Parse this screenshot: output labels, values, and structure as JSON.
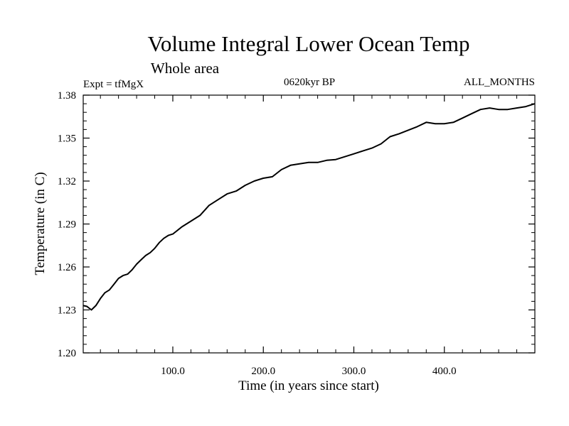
{
  "chart_data": {
    "type": "line",
    "title": "Volume Integral Lower Ocean Temp",
    "subtitle": "Whole area",
    "expt_label": "Expt = tfMgX",
    "period_label": "0620kyr BP",
    "months_label": "ALL_MONTHS",
    "xlabel": "Time (in years since start)",
    "ylabel": "Temperature (in C)",
    "xlim": [
      1,
      500
    ],
    "ylim": [
      1.2,
      1.38
    ],
    "x_ticks": [
      "100.0",
      "200.0",
      "300.0",
      "400.0"
    ],
    "x_tick_values": [
      100,
      200,
      300,
      400
    ],
    "y_ticks": [
      "1.20",
      "1.23",
      "1.26",
      "1.29",
      "1.32",
      "1.35",
      "1.38"
    ],
    "y_tick_values": [
      1.2,
      1.23,
      1.26,
      1.29,
      1.32,
      1.35,
      1.38
    ],
    "grid": false,
    "line_color": "#000000",
    "series": [
      {
        "x": [
          1,
          5,
          10,
          15,
          20,
          25,
          30,
          35,
          40,
          45,
          50,
          55,
          60,
          65,
          70,
          75,
          80,
          85,
          90,
          95,
          100,
          110,
          120,
          130,
          140,
          150,
          160,
          170,
          180,
          190,
          200,
          210,
          220,
          230,
          240,
          250,
          260,
          270,
          280,
          290,
          300,
          310,
          320,
          330,
          340,
          350,
          360,
          370,
          380,
          390,
          400,
          410,
          420,
          430,
          440,
          450,
          460,
          470,
          480,
          490,
          500
        ],
        "y": [
          1.233,
          1.2325,
          1.23,
          1.233,
          1.238,
          1.242,
          1.244,
          1.248,
          1.252,
          1.254,
          1.255,
          1.258,
          1.262,
          1.265,
          1.268,
          1.27,
          1.273,
          1.277,
          1.28,
          1.282,
          1.283,
          1.288,
          1.292,
          1.296,
          1.303,
          1.307,
          1.311,
          1.313,
          1.317,
          1.32,
          1.322,
          1.323,
          1.328,
          1.331,
          1.332,
          1.333,
          1.333,
          1.3345,
          1.335,
          1.337,
          1.339,
          1.341,
          1.343,
          1.346,
          1.351,
          1.353,
          1.3555,
          1.358,
          1.361,
          1.36,
          1.36,
          1.361,
          1.364,
          1.367,
          1.37,
          1.371,
          1.37,
          1.37,
          1.371,
          1.372,
          1.374
        ]
      }
    ]
  }
}
